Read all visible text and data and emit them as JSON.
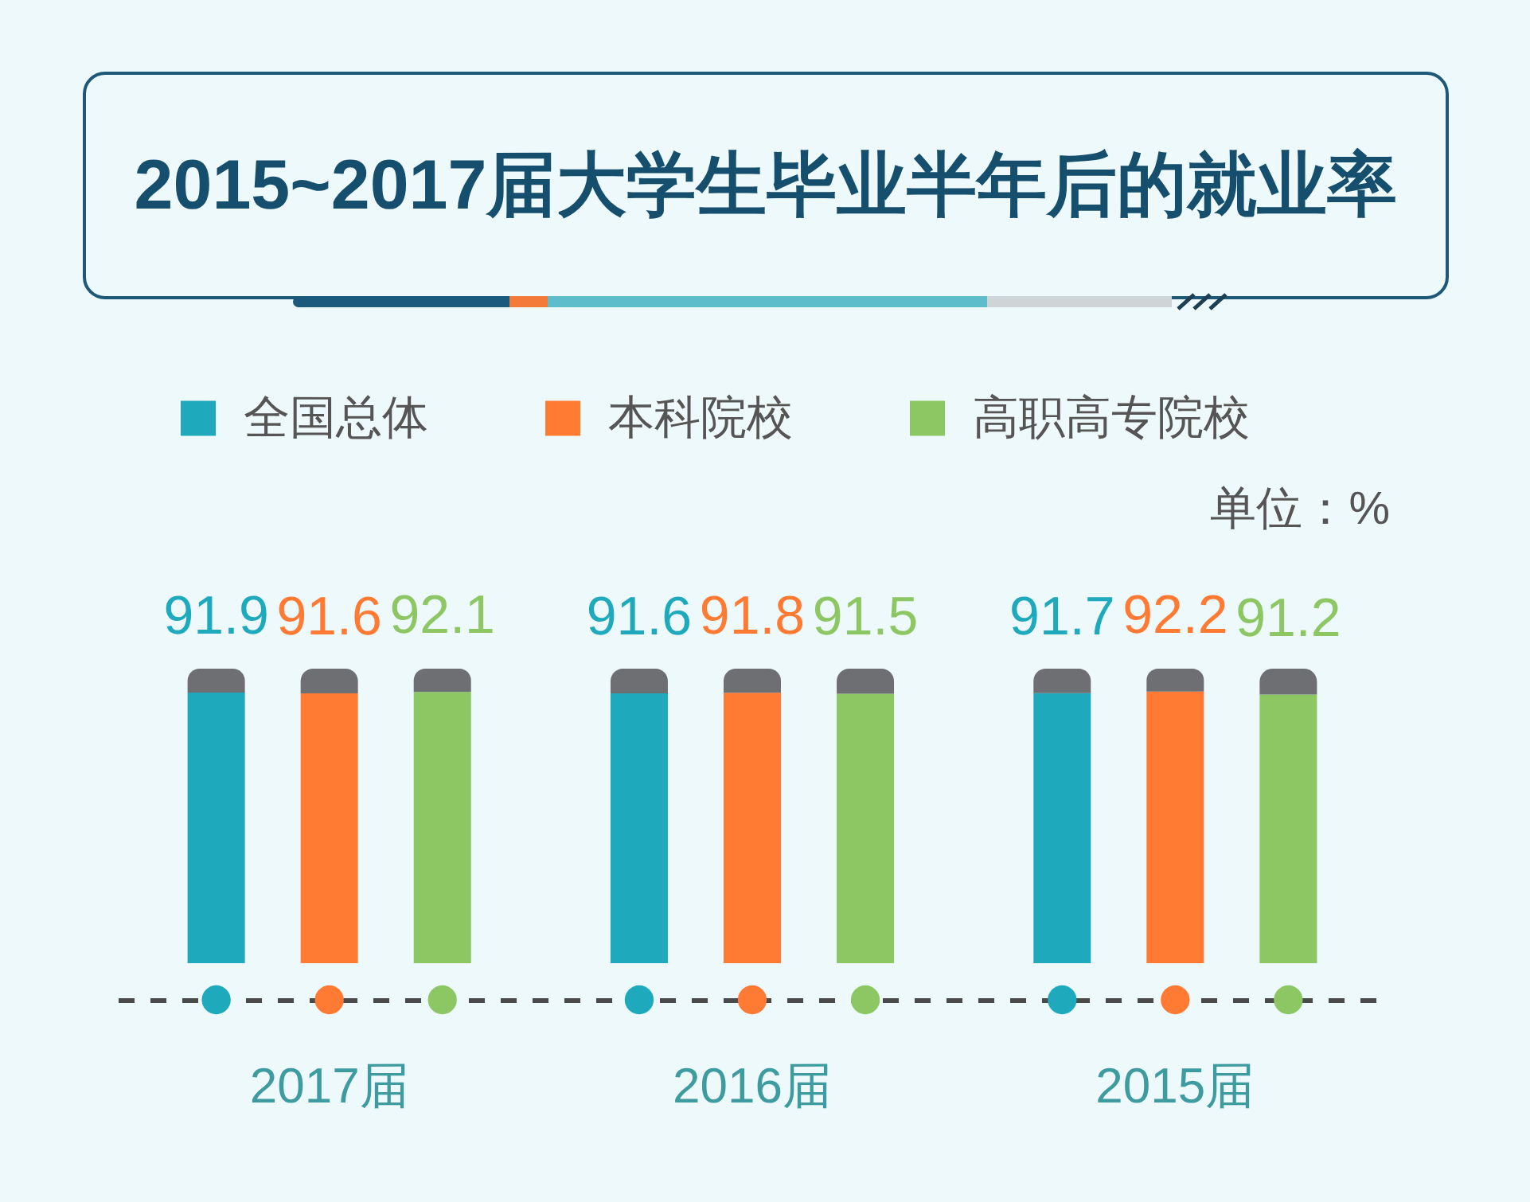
{
  "chart_data": {
    "type": "bar",
    "title": "2015~2017届大学生毕业半年后的就业率",
    "annotations": [
      "单位：%"
    ],
    "categories": [
      "2017届",
      "2016届",
      "2015届"
    ],
    "series": [
      {
        "name": "全国总体",
        "color": "#1ea9bc",
        "values": [
          91.9,
          91.6,
          91.7
        ]
      },
      {
        "name": "本科院校",
        "color": "#ff7a33",
        "values": [
          91.6,
          91.8,
          92.2
        ]
      },
      {
        "name": "高职高专院校",
        "color": "#8cc763",
        "values": [
          92.1,
          91.5,
          91.2
        ]
      }
    ],
    "ylim": [
      0,
      100
    ],
    "tick_labels": "x",
    "data_labels": true,
    "legend": "top"
  }
}
